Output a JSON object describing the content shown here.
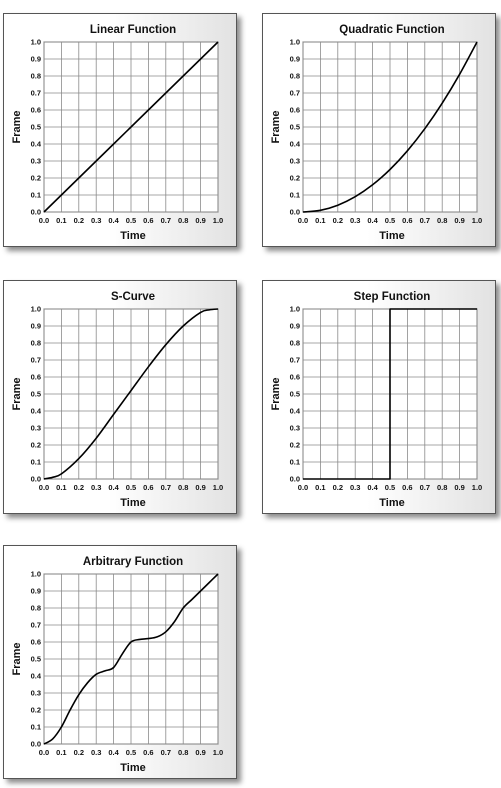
{
  "chart_data": [
    {
      "id": "linear",
      "type": "line",
      "title": "Linear Function",
      "xlabel": "Time",
      "ylabel": "Frame",
      "xlim": [
        0,
        1
      ],
      "ylim": [
        0,
        1
      ],
      "grid": true,
      "x_ticks": [
        "0.0",
        "0.1",
        "0.2",
        "0.3",
        "0.4",
        "0.5",
        "0.6",
        "0.7",
        "0.8",
        "0.9",
        "1.0"
      ],
      "y_ticks": [
        "0.0",
        "0.1",
        "0.2",
        "0.3",
        "0.4",
        "0.5",
        "0.6",
        "0.7",
        "0.8",
        "0.9",
        "1.0"
      ],
      "series": [
        {
          "x": [
            0,
            0.1,
            0.2,
            0.3,
            0.4,
            0.5,
            0.6,
            0.7,
            0.8,
            0.9,
            1.0
          ],
          "y": [
            0,
            0.1,
            0.2,
            0.3,
            0.4,
            0.5,
            0.6,
            0.7,
            0.8,
            0.9,
            1.0
          ]
        }
      ]
    },
    {
      "id": "quad",
      "type": "line",
      "title": "Quadratic Function",
      "xlabel": "Time",
      "ylabel": "Frame",
      "xlim": [
        0,
        1
      ],
      "ylim": [
        0,
        1
      ],
      "grid": true,
      "x_ticks": [
        "0.0",
        "0.1",
        "0.2",
        "0.3",
        "0.4",
        "0.5",
        "0.6",
        "0.7",
        "0.8",
        "0.9",
        "1.0"
      ],
      "y_ticks": [
        "0.0",
        "0.1",
        "0.2",
        "0.3",
        "0.4",
        "0.5",
        "0.6",
        "0.7",
        "0.8",
        "0.9",
        "1.0"
      ],
      "series": [
        {
          "x": [
            0,
            0.1,
            0.2,
            0.3,
            0.4,
            0.5,
            0.6,
            0.7,
            0.8,
            0.9,
            1.0
          ],
          "y": [
            0,
            0.01,
            0.04,
            0.09,
            0.16,
            0.25,
            0.36,
            0.49,
            0.64,
            0.81,
            1.0
          ]
        }
      ]
    },
    {
      "id": "scurve",
      "type": "line",
      "title": "S-Curve",
      "xlabel": "Time",
      "ylabel": "Frame",
      "xlim": [
        0,
        1
      ],
      "ylim": [
        0,
        1
      ],
      "grid": true,
      "x_ticks": [
        "0.0",
        "0.1",
        "0.2",
        "0.3",
        "0.4",
        "0.5",
        "0.6",
        "0.7",
        "0.8",
        "0.9",
        "1.0"
      ],
      "y_ticks": [
        "0.0",
        "0.1",
        "0.2",
        "0.3",
        "0.4",
        "0.5",
        "0.6",
        "0.7",
        "0.8",
        "0.9",
        "1.0"
      ],
      "series": [
        {
          "x": [
            0,
            0.05,
            0.1,
            0.2,
            0.3,
            0.4,
            0.5,
            0.6,
            0.7,
            0.8,
            0.9,
            0.95,
            1.0
          ],
          "y": [
            0,
            0.01,
            0.03,
            0.12,
            0.24,
            0.38,
            0.52,
            0.66,
            0.79,
            0.9,
            0.98,
            0.995,
            1.0
          ]
        }
      ]
    },
    {
      "id": "step",
      "type": "line",
      "title": "Step Function",
      "xlabel": "Time",
      "ylabel": "Frame",
      "xlim": [
        0,
        1
      ],
      "ylim": [
        0,
        1
      ],
      "grid": true,
      "x_ticks": [
        "0.0",
        "0.1",
        "0.2",
        "0.3",
        "0.4",
        "0.5",
        "0.6",
        "0.7",
        "0.8",
        "0.9",
        "1.0"
      ],
      "y_ticks": [
        "0.0",
        "0.1",
        "0.2",
        "0.3",
        "0.4",
        "0.5",
        "0.6",
        "0.7",
        "0.8",
        "0.9",
        "1.0"
      ],
      "series": [
        {
          "x": [
            0,
            0.5,
            0.5,
            1.0
          ],
          "y": [
            0,
            0,
            1.0,
            1.0
          ]
        }
      ]
    },
    {
      "id": "arb",
      "type": "line",
      "title": "Arbitrary Function",
      "xlabel": "Time",
      "ylabel": "Frame",
      "xlim": [
        0,
        1
      ],
      "ylim": [
        0,
        1
      ],
      "grid": true,
      "x_ticks": [
        "0.0",
        "0.1",
        "0.2",
        "0.3",
        "0.4",
        "0.5",
        "0.6",
        "0.7",
        "0.8",
        "0.9",
        "1.0"
      ],
      "y_ticks": [
        "0.0",
        "0.1",
        "0.2",
        "0.3",
        "0.4",
        "0.5",
        "0.6",
        "0.7",
        "0.8",
        "0.9",
        "1.0"
      ],
      "series": [
        {
          "x": [
            0,
            0.05,
            0.1,
            0.15,
            0.2,
            0.25,
            0.3,
            0.35,
            0.4,
            0.45,
            0.5,
            0.55,
            0.6,
            0.65,
            0.7,
            0.75,
            0.8,
            0.85,
            0.9,
            0.95,
            1.0
          ],
          "y": [
            0,
            0.03,
            0.1,
            0.2,
            0.29,
            0.36,
            0.41,
            0.43,
            0.45,
            0.53,
            0.6,
            0.615,
            0.62,
            0.63,
            0.66,
            0.72,
            0.8,
            0.85,
            0.9,
            0.95,
            1.0
          ]
        }
      ]
    }
  ]
}
